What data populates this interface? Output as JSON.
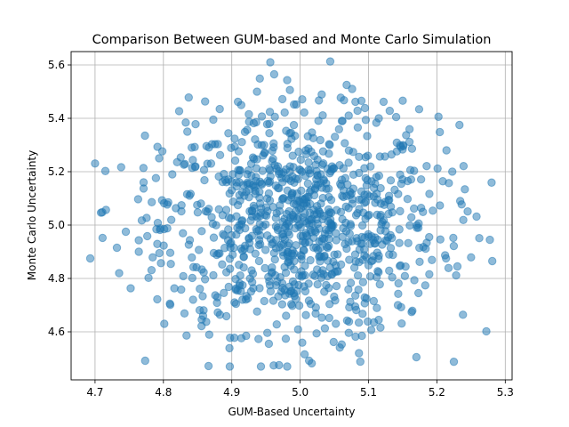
{
  "chart_data": {
    "type": "scatter",
    "title": "Comparison Between GUM-based and Monte Carlo Simulation",
    "xlabel": "GUM-Based Uncertainty",
    "ylabel": "Monte Carlo Uncertainty",
    "xlim": [
      4.665,
      5.31
    ],
    "ylim": [
      4.42,
      5.65
    ],
    "xticks": [
      "4.7",
      "4.8",
      "4.9",
      "5.0",
      "5.1",
      "5.2",
      "5.3"
    ],
    "yticks": [
      "4.6",
      "4.8",
      "5.0",
      "5.2",
      "5.4",
      "5.6"
    ],
    "grid": true,
    "marker_color": "#1f77b4",
    "marker_alpha": 0.5,
    "series": [
      {
        "n_points": 1000,
        "x_mean": 5.0,
        "x_std": 0.1,
        "y_mean": 5.0,
        "y_std": 0.2,
        "points": [
          [
            4.693,
            4.875
          ],
          [
            4.711,
            4.952
          ],
          [
            4.716,
            5.057
          ],
          [
            4.732,
            4.915
          ],
          [
            4.745,
            4.975
          ],
          [
            4.763,
            5.097
          ],
          [
            4.764,
            4.943
          ],
          [
            4.764,
            4.9
          ],
          [
            4.771,
            5.16
          ],
          [
            4.771,
            5.137
          ],
          [
            4.773,
            5.335
          ],
          [
            4.789,
            5.176
          ],
          [
            4.791,
            4.722
          ],
          [
            4.795,
            4.982
          ],
          [
            4.798,
            5.093
          ],
          [
            4.801,
            5.082
          ],
          [
            4.807,
            5.085
          ],
          [
            4.81,
            4.896
          ],
          [
            4.813,
            5.19
          ],
          [
            4.816,
            4.763
          ],
          [
            4.823,
            5.427
          ],
          [
            4.826,
            4.758
          ],
          [
            4.83,
            5.226
          ],
          [
            4.835,
            5.35
          ],
          [
            4.837,
            5.478
          ],
          [
            4.843,
            5.244
          ],
          [
            4.847,
            5.378
          ],
          [
            4.853,
            4.681
          ],
          [
            4.856,
            4.646
          ],
          [
            4.858,
            4.66
          ],
          [
            4.861,
            5.463
          ],
          [
            4.866,
            4.472
          ],
          [
            4.871,
            5.303
          ],
          [
            4.873,
            5.395
          ],
          [
            4.878,
            4.888
          ],
          [
            4.881,
            5.182
          ],
          [
            4.889,
            4.961
          ],
          [
            4.895,
            5.344
          ],
          [
            4.899,
            5.289
          ],
          [
            4.904,
            4.71
          ],
          [
            4.909,
            5.462
          ],
          [
            4.912,
            5.205
          ],
          [
            4.914,
            4.576
          ],
          [
            4.917,
            5.15
          ],
          [
            4.921,
            4.585
          ],
          [
            4.925,
            5.415
          ],
          [
            4.929,
            4.83
          ],
          [
            4.931,
            5.253
          ],
          [
            4.934,
            5.321
          ],
          [
            4.937,
            4.676
          ],
          [
            4.941,
            5.549
          ],
          [
            4.944,
            5.407
          ],
          [
            4.952,
            4.596
          ],
          [
            4.955,
            5.379
          ],
          [
            4.962,
            5.565
          ],
          [
            4.968,
            4.733
          ],
          [
            4.974,
            5.472
          ],
          [
            4.979,
            4.574
          ],
          [
            4.981,
            5.543
          ],
          [
            4.985,
            5.506
          ],
          [
            4.991,
            5.452
          ],
          [
            4.997,
            4.609
          ],
          [
            5.003,
            5.471
          ],
          [
            5.006,
            5.422
          ],
          [
            5.013,
            4.492
          ],
          [
            5.017,
            4.482
          ],
          [
            5.024,
            4.594
          ],
          [
            5.033,
            5.411
          ],
          [
            5.044,
            5.613
          ],
          [
            5.049,
            4.562
          ],
          [
            5.058,
            4.541
          ],
          [
            5.061,
            5.39
          ],
          [
            5.068,
            5.525
          ],
          [
            5.071,
            5.41
          ],
          [
            5.076,
            5.51
          ],
          [
            5.081,
            4.582
          ],
          [
            5.086,
            4.52
          ],
          [
            5.088,
            4.488
          ],
          [
            5.096,
            5.394
          ],
          [
            5.104,
            4.607
          ],
          [
            5.115,
            5.4
          ],
          [
            5.122,
            5.462
          ],
          [
            5.131,
            5.428
          ],
          [
            5.143,
            4.7
          ],
          [
            5.15,
            5.466
          ],
          [
            5.155,
            5.337
          ],
          [
            5.163,
            4.674
          ],
          [
            5.17,
            4.505
          ],
          [
            5.174,
            5.434
          ],
          [
            5.183,
            4.774
          ],
          [
            5.189,
            5.117
          ],
          [
            5.194,
            5.054
          ],
          [
            5.201,
            5.212
          ],
          [
            5.214,
            5.28
          ],
          [
            5.217,
            4.839
          ],
          [
            5.224,
            4.952
          ],
          [
            5.233,
            5.375
          ],
          [
            5.239,
            5.221
          ],
          [
            5.245,
            5.051
          ],
          [
            5.258,
            5.032
          ],
          [
            5.262,
            4.951
          ],
          [
            5.281,
            4.865
          ],
          [
            5.25,
            4.879
          ],
          [
            5.23,
            4.845
          ],
          [
            5.205,
            4.946
          ]
        ]
      }
    ]
  }
}
